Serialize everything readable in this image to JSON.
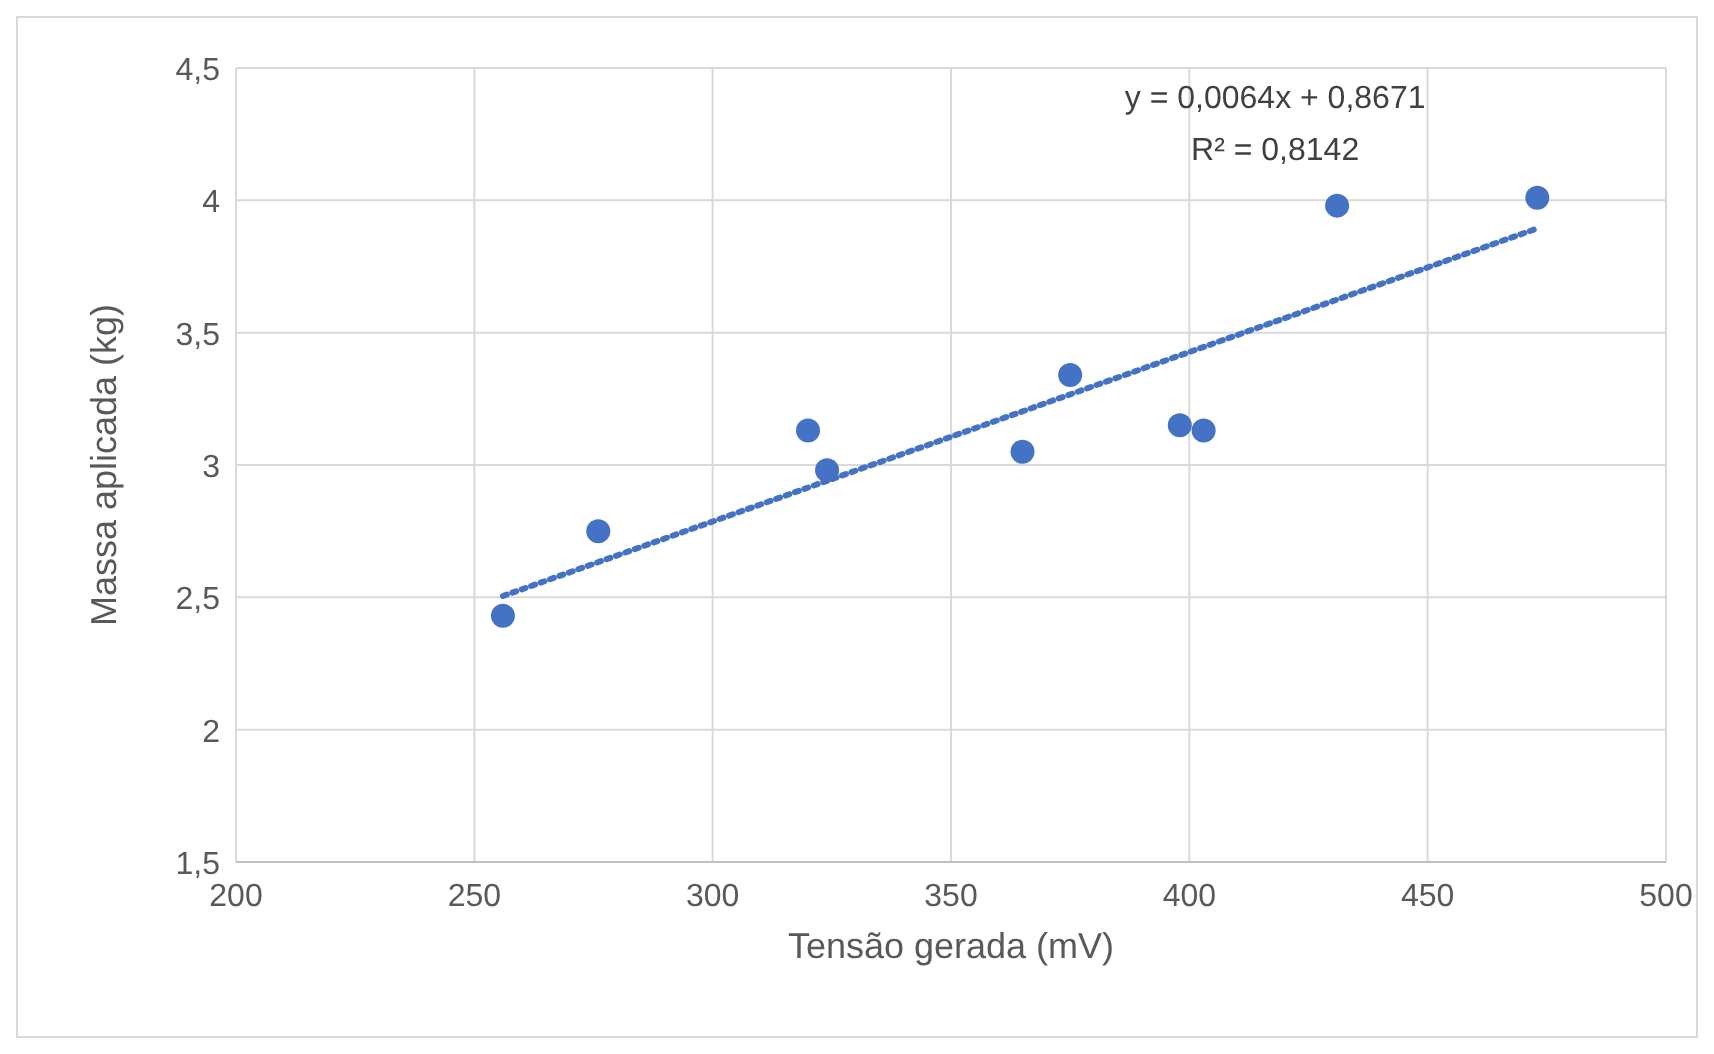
{
  "chart_data": {
    "type": "scatter",
    "xlabel": "Tensão gerada (mV)",
    "ylabel": "Massa aplicada (kg)",
    "xlim": [
      200,
      500
    ],
    "xticks": [
      200,
      250,
      300,
      350,
      400,
      450,
      500
    ],
    "ylim": [
      1.5,
      4.5
    ],
    "yticks": [
      {
        "value": 1.5,
        "label": "1,5"
      },
      {
        "value": 2,
        "label": "2"
      },
      {
        "value": 2.5,
        "label": "2,5"
      },
      {
        "value": 3,
        "label": "3"
      },
      {
        "value": 3.5,
        "label": "3,5"
      },
      {
        "value": 4,
        "label": "4"
      },
      {
        "value": 4.5,
        "label": "4,5"
      }
    ],
    "grid": true,
    "marker": "circle",
    "series": [
      {
        "color": "#4472c4",
        "x": [
          256,
          276,
          320,
          324,
          365,
          375,
          398,
          403,
          431,
          473
        ],
        "values": [
          2.43,
          2.75,
          3.13,
          2.98,
          3.05,
          3.34,
          3.15,
          3.13,
          3.98,
          4.01
        ]
      },
      {
        "type": "line",
        "color": "#4472c4",
        "line_style": "dotted",
        "marker": "none",
        "x": [
          256,
          473
        ],
        "values": [
          2.505,
          3.894
        ]
      }
    ],
    "annotations": [
      "y = 0,0064x + 0,8671",
      "R² = 0,8142"
    ]
  }
}
